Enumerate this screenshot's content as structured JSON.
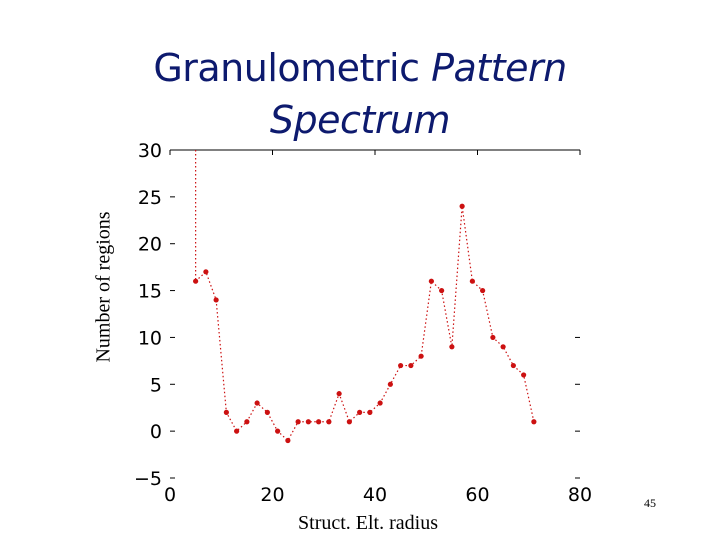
{
  "title": {
    "line1_plain": "Granulometric ",
    "line1_italic": "Pattern",
    "line2_italic": "Spectrum"
  },
  "page_number": "45",
  "colors": {
    "title": "#0d1a6e",
    "series": "#cc1111"
  },
  "chart_data": {
    "type": "line",
    "title": "Granulometric Pattern Spectrum",
    "xlabel": "Struct. Elt. radius",
    "ylabel": "Number of regions",
    "xlim": [
      0,
      80
    ],
    "ylim": [
      -5,
      30
    ],
    "xticks": [
      0,
      20,
      40,
      60,
      80
    ],
    "yticks": [
      -5,
      0,
      5,
      10,
      15,
      20,
      25,
      30
    ],
    "xtick_labels": [
      "0",
      "20",
      "40",
      "60",
      "80"
    ],
    "ytick_labels": [
      "−5",
      "0",
      "5",
      "10",
      "15",
      "20",
      "25",
      "30"
    ],
    "grid": false,
    "line_style": "dotted",
    "marker": "circle",
    "series": [
      {
        "x": [
          5,
          7,
          9,
          11,
          13,
          15,
          17,
          19,
          21,
          23,
          25,
          27,
          29,
          31,
          33,
          35,
          37,
          39,
          41,
          43,
          45,
          47,
          49,
          51,
          53,
          55,
          57,
          59,
          61,
          63,
          65,
          67,
          69,
          71
        ],
        "y": [
          16,
          17,
          14,
          2,
          0,
          1,
          3,
          2,
          0,
          -1,
          1,
          1,
          1,
          1,
          4,
          1,
          2,
          2,
          3,
          5,
          7,
          7,
          8,
          16,
          15,
          9,
          24,
          16,
          15,
          10,
          9,
          7,
          6,
          1
        ]
      }
    ],
    "leading_segment": {
      "x": [
        5,
        5
      ],
      "y": [
        30,
        16
      ]
    }
  }
}
